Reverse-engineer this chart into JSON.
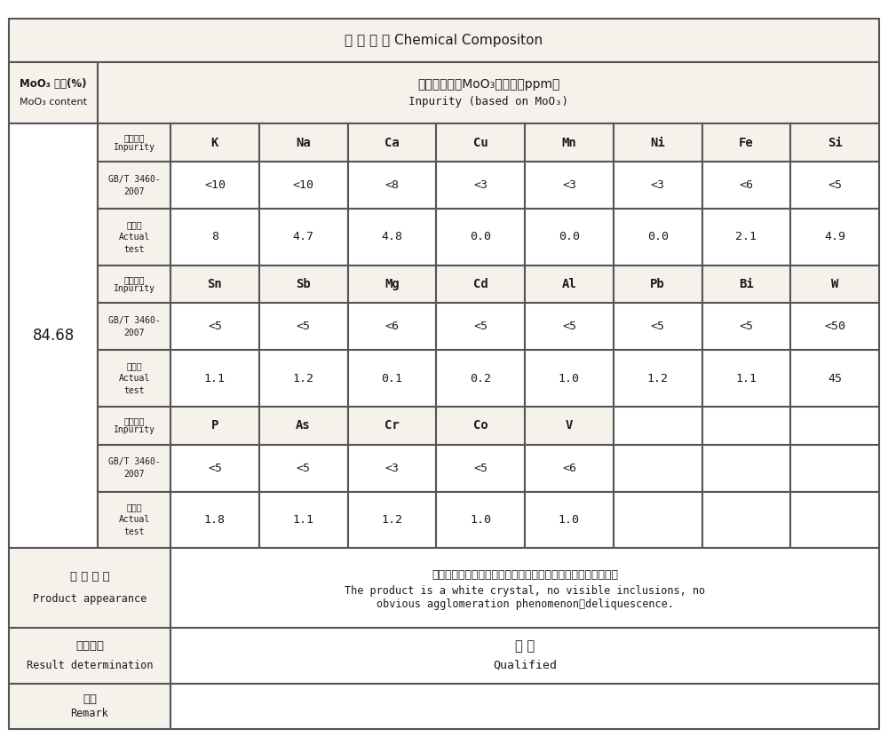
{
  "title": "化 学 成 份 Chemical Compositon",
  "bg_color": "#ffffff",
  "header_bg": "#f0eeeb",
  "cell_bg": "#ffffff",
  "border_color": "#555555",
  "moo3_label_line1": "MoO₃ 含量(%)",
  "moo3_label_line2": "MoO₃ content",
  "impurity_header_cn": "杂质元素（以MoO₃为基）（ppm）",
  "impurity_header_en": "Inpurity (based on MoO₃)",
  "moo3_value": "84.68",
  "elements1": [
    "K",
    "Na",
    "Ca",
    "Cu",
    "Mn",
    "Ni",
    "Fe",
    "Si"
  ],
  "std1_values": [
    "<10",
    "<10",
    "<8",
    "<3",
    "<3",
    "<3",
    "<6",
    "<5"
  ],
  "act1_values": [
    "8",
    "4.7",
    "4.8",
    "0.0",
    "0.0",
    "0.0",
    "2.1",
    "4.9"
  ],
  "elements2": [
    "Sn",
    "Sb",
    "Mg",
    "Cd",
    "Al",
    "Pb",
    "Bi",
    "W"
  ],
  "std2_values": [
    "<5",
    "<5",
    "<6",
    "<5",
    "<5",
    "<5",
    "<5",
    "<50"
  ],
  "act2_values": [
    "1.1",
    "1.2",
    "0.1",
    "0.2",
    "1.0",
    "1.2",
    "1.1",
    "45"
  ],
  "elements3": [
    "P",
    "As",
    "Cr",
    "Co",
    "V",
    "",
    "",
    ""
  ],
  "std3_values": [
    "<5",
    "<5",
    "<3",
    "<5",
    "<6",
    "",
    "",
    ""
  ],
  "act3_values": [
    "1.8",
    "1.1",
    "1.2",
    "1.0",
    "1.0",
    "",
    "",
    ""
  ],
  "appearance_label_cn": "产 品 外 观",
  "appearance_label_en": "Product appearance",
  "appearance_text_cn": "产品呈白色结晶，无目视可见夹杂物，无明显潮解、结块现象。",
  "appearance_text_en": "The product is a white crystal, no visible inclusions, no\nobvious agglomeration phenomenon、deliquescence.",
  "result_label_cn": "结果判定",
  "result_label_en": "Result determination",
  "result_value_cn": "合 格",
  "result_value_en": "Qualified",
  "remark_label_cn": "备注",
  "remark_label_en": "Remark",
  "inpurity_cn": "杂质元素",
  "inpurity_en": "Inpurity",
  "gbt_line1": "GB/T 3460-",
  "gbt_line2": "2007",
  "actual_cn": "实测值",
  "actual_en1": "Actual",
  "actual_en2": "test"
}
